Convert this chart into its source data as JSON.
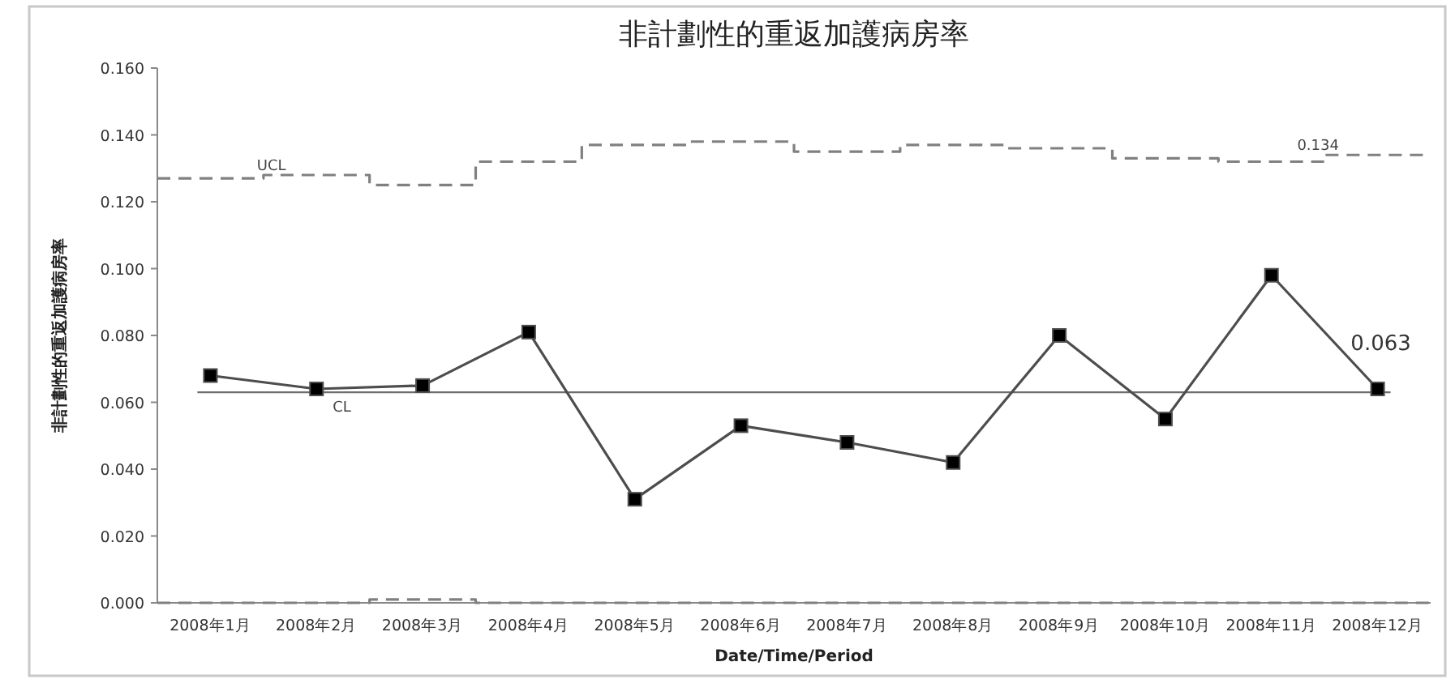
{
  "chart_data": {
    "type": "line",
    "title": "非計劃性的重返加護病房率",
    "xlabel": "Date/Time/Period",
    "ylabel": "非計劃性的重返加護病房率",
    "categories": [
      "2008年1月",
      "2008年2月",
      "2008年3月",
      "2008年4月",
      "2008年5月",
      "2008年6月",
      "2008年7月",
      "2008年8月",
      "2008年9月",
      "2008年10月",
      "2008年11月",
      "2008年12月"
    ],
    "ylim": [
      0,
      0.16
    ],
    "yticks": [
      {
        "value": 0,
        "label": "0.000"
      },
      {
        "value": 0.02,
        "label": "0.020"
      },
      {
        "value": 0.04,
        "label": "0.040"
      },
      {
        "value": 0.06,
        "label": "0.060"
      },
      {
        "value": 0.08,
        "label": "0.080"
      },
      {
        "value": 0.1,
        "label": "0.100"
      },
      {
        "value": 0.12,
        "label": "0.120"
      },
      {
        "value": 0.14,
        "label": "0.140"
      },
      {
        "value": 0.16,
        "label": "0.160"
      }
    ],
    "series": [
      {
        "type": "line",
        "color": "#4d4d4d",
        "marker": "square",
        "line_style": "solid",
        "values": [
          0.068,
          0.064,
          0.065,
          0.081,
          0.031,
          0.053,
          0.048,
          0.042,
          0.08,
          0.055,
          0.098,
          0.064
        ]
      },
      {
        "type": "step",
        "name": "UCL",
        "color": "#808080",
        "marker": "none",
        "line_style": "dashed",
        "values": [
          0.127,
          0.128,
          0.125,
          0.132,
          0.137,
          0.138,
          0.135,
          0.137,
          0.136,
          0.133,
          0.132,
          0.134
        ]
      },
      {
        "type": "step",
        "color": "#808080",
        "marker": "none",
        "line_style": "dashed",
        "values": [
          0,
          0,
          0.001,
          0,
          0,
          0,
          0,
          0,
          0,
          0,
          0,
          0
        ]
      }
    ],
    "ref_lines": [
      {
        "axis": "y",
        "value": 0.063,
        "label": "CL",
        "color": "#6e6e6e",
        "line_style": "solid"
      }
    ],
    "annotations": [
      {
        "text": "0.063",
        "x": "2008年12月",
        "y": 0.063
      },
      {
        "text": "0.134",
        "x": "2008年12月",
        "y": 0.134
      }
    ]
  }
}
